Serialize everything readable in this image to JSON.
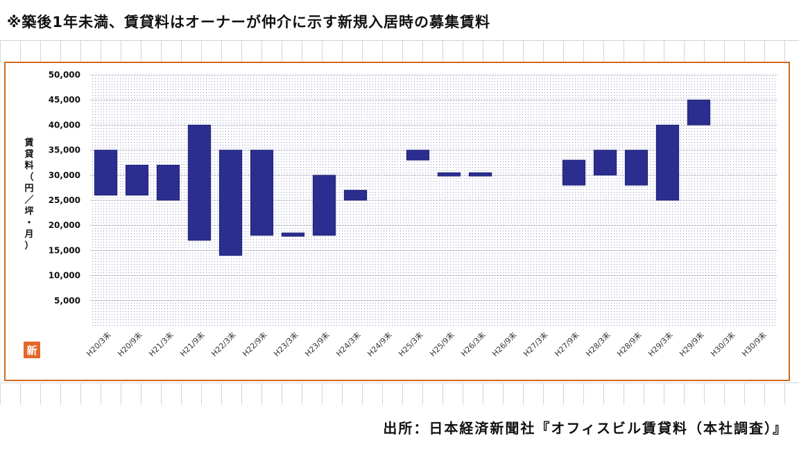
{
  "header": {
    "note": "※築後1年未満、賃貸料はオーナーが仲介に示す新規入居時の募集賃料"
  },
  "footer": {
    "source": "出所：日本経済新聞社『オフィスビル賃貸料（本社調査）』"
  },
  "logo": {
    "text": "新"
  },
  "colors": {
    "bar": "#2b2e8f",
    "frame": "#d2691e",
    "dots": "#2b2e8f"
  },
  "chart_data": {
    "type": "bar",
    "subtype": "floating-range",
    "ylabel": "賃貸料（円／坪・月）",
    "ylim": [
      0,
      50000
    ],
    "yticks": [
      5000,
      10000,
      15000,
      20000,
      25000,
      30000,
      35000,
      40000,
      45000,
      50000
    ],
    "ytick_labels": [
      "5,000",
      "10,000",
      "15,000",
      "20,000",
      "25,000",
      "30,000",
      "35,000",
      "40,000",
      "45,000",
      "50,000"
    ],
    "categories": [
      "H20/3末",
      "H20/9末",
      "H21/3末",
      "H21/9末",
      "H22/3末",
      "H22/9末",
      "H23/3末",
      "H23/9末",
      "H24/3末",
      "H24/9末",
      "H25/3末",
      "H25/9末",
      "H26/3末",
      "H26/9末",
      "H27/3末",
      "H27/9末",
      "H28/3末",
      "H28/9末",
      "H29/3末",
      "H29/9末",
      "H30/3末",
      "H30/9末"
    ],
    "ranges": [
      [
        26000,
        35000
      ],
      [
        26000,
        32000
      ],
      [
        25000,
        32000
      ],
      [
        17000,
        40000
      ],
      [
        14000,
        35000
      ],
      [
        18000,
        35000
      ],
      [
        18000,
        18500
      ],
      [
        18000,
        30000
      ],
      [
        25000,
        27000
      ],
      null,
      [
        33000,
        35000
      ],
      [
        30000,
        30500
      ],
      [
        30000,
        30500
      ],
      null,
      null,
      [
        28000,
        33000
      ],
      [
        30000,
        35000
      ],
      [
        28000,
        35000
      ],
      [
        25000,
        40000
      ],
      [
        40000,
        45000
      ],
      null,
      null
    ],
    "grid": true,
    "legend": "none"
  }
}
